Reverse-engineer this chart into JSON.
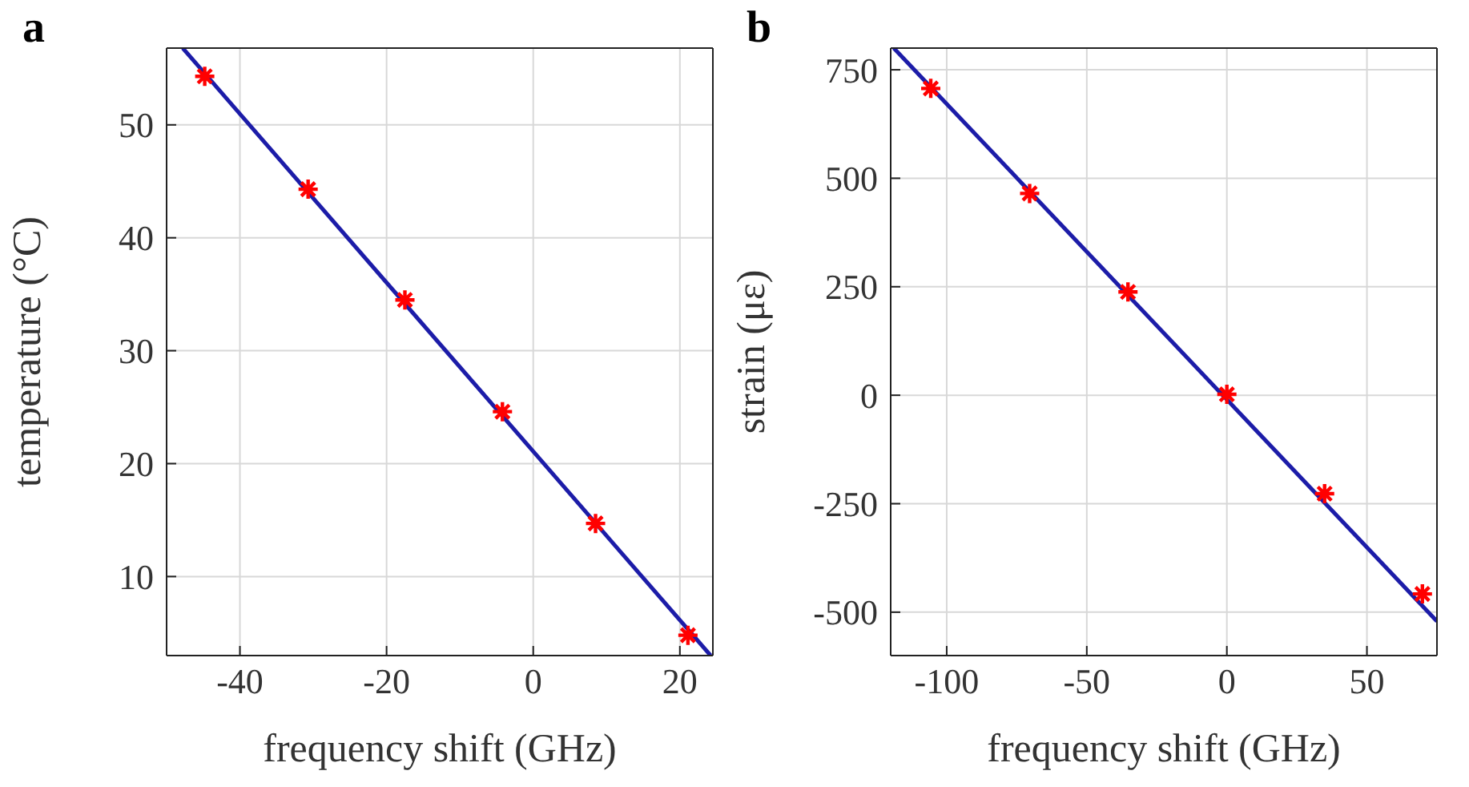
{
  "chart_data": [
    {
      "type": "scatter",
      "title": "a",
      "xlabel": "frequency shift (GHz)",
      "ylabel": "temperature (°C)",
      "xlim": [
        -50,
        24.5
      ],
      "xticks": [
        -40,
        -20,
        0,
        20
      ],
      "ylim": [
        3,
        56.8
      ],
      "yticks": [
        10,
        20,
        30,
        40,
        50
      ],
      "grid": true,
      "series": [
        {
          "color": "#ff0000",
          "marker": "cross",
          "x": [
            -44.8,
            -30.7,
            -17.5,
            -4.2,
            8.5,
            21.1
          ],
          "values": [
            54.3,
            44.3,
            34.5,
            24.6,
            14.7,
            4.8
          ]
        },
        {
          "type": "line",
          "marker": "none",
          "color": "#1c1ca8",
          "x": [
            -47.8,
            24.2
          ],
          "values": [
            56.8,
            3.0
          ]
        }
      ]
    },
    {
      "type": "scatter",
      "title": "b",
      "xlabel": "frequency shift (GHz)",
      "ylabel": "strain (με)",
      "xlim": [
        -120,
        75
      ],
      "xticks": [
        -100,
        -50,
        0,
        50
      ],
      "ylim": [
        -600,
        800
      ],
      "yticks": [
        -500,
        -250,
        0,
        250,
        500,
        750
      ],
      "grid": true,
      "series": [
        {
          "color": "#ff0000",
          "marker": "cross",
          "x": [
            -105.7,
            -70.4,
            -35.3,
            0,
            34.9,
            69.8
          ],
          "values": [
            707,
            465,
            238,
            2,
            -227,
            -458
          ]
        },
        {
          "type": "line",
          "marker": "none",
          "color": "#1c1ca8",
          "x": [
            -118.9,
            75
          ],
          "values": [
            800,
            -521
          ]
        }
      ]
    }
  ]
}
